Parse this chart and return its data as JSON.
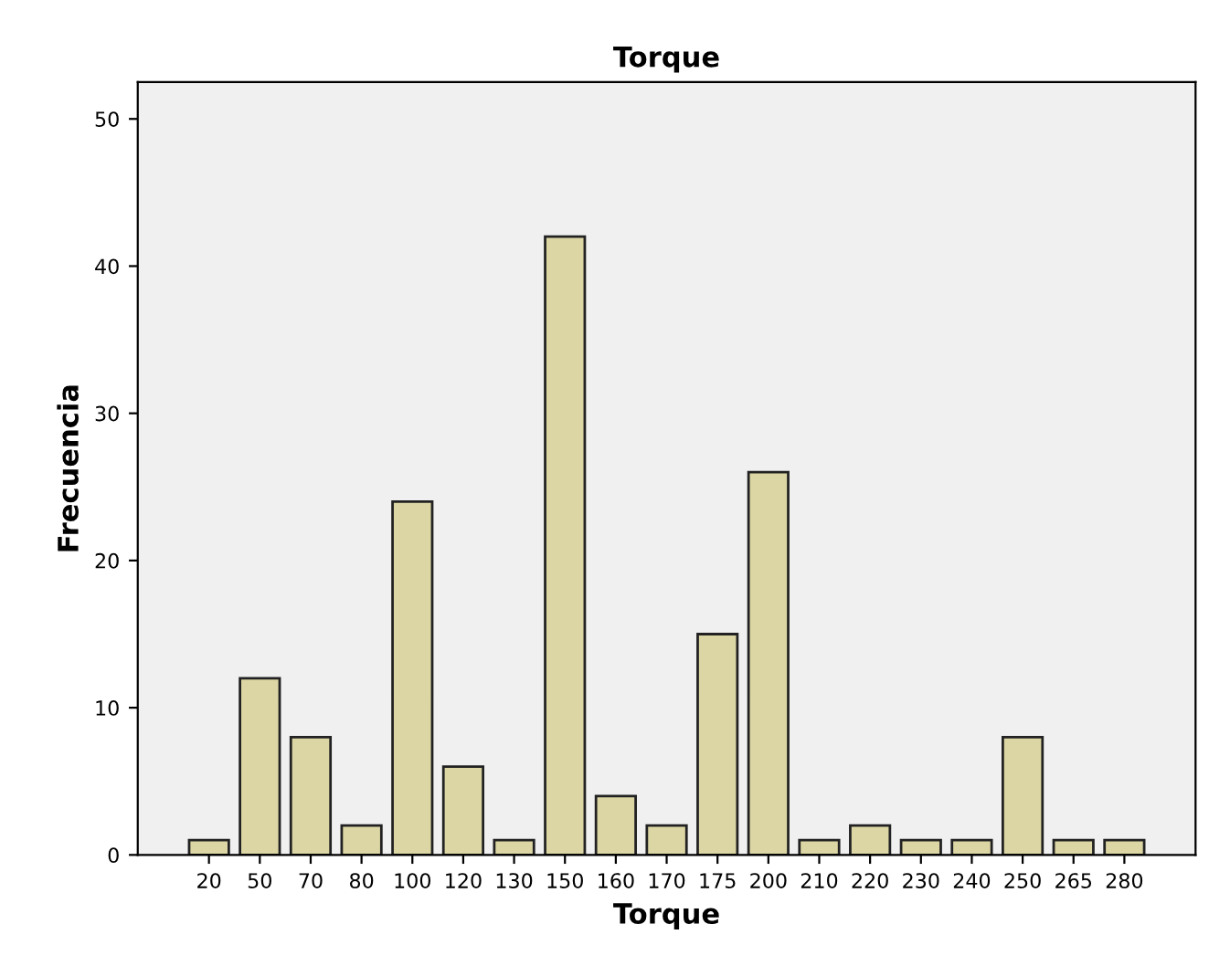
{
  "chart_data": {
    "type": "bar",
    "title": "Torque",
    "xlabel": "Torque",
    "ylabel": "Frecuencia",
    "categories": [
      "20",
      "50",
      "70",
      "80",
      "100",
      "120",
      "130",
      "150",
      "160",
      "170",
      "175",
      "200",
      "210",
      "220",
      "230",
      "240",
      "250",
      "265",
      "280"
    ],
    "values": [
      1,
      12,
      8,
      2,
      24,
      6,
      1,
      42,
      4,
      2,
      15,
      26,
      1,
      2,
      1,
      1,
      8,
      1,
      1
    ],
    "color": "#dcd6a4",
    "ylim": [
      0,
      52.5
    ],
    "yticks": [
      0,
      10,
      20,
      30,
      40,
      50
    ],
    "grid": false,
    "legend": false
  }
}
